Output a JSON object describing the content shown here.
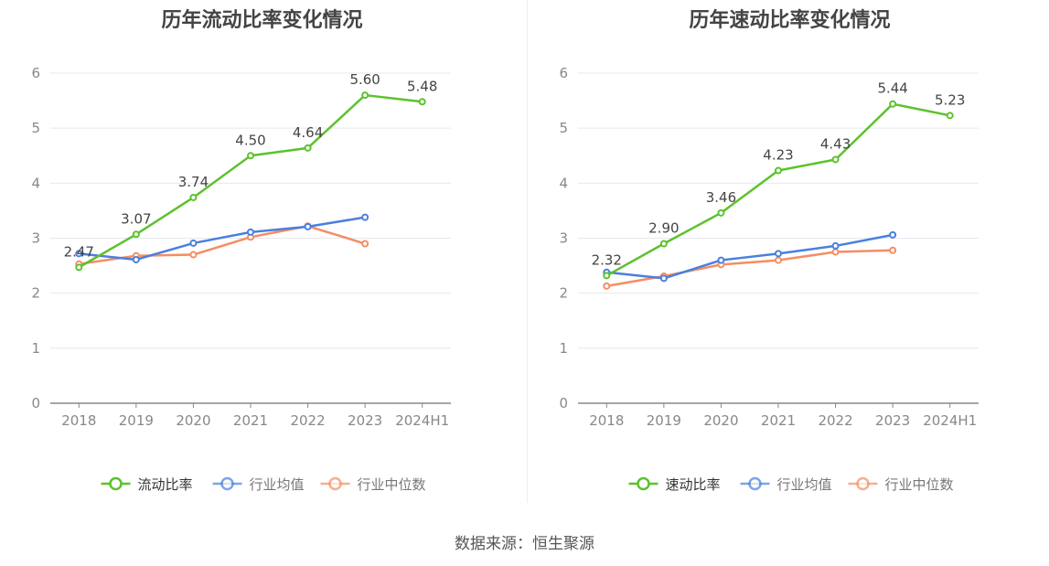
{
  "source_label": "数据来源：恒生聚源",
  "colors": {
    "primary": "#5cc22c",
    "mean": "#4a7fde",
    "median": "#f58d62",
    "grid": "#e6e8f0",
    "axis": "#888888",
    "tick": "#888888"
  },
  "chart_data": [
    {
      "type": "line",
      "title": "历年流动比率变化情况",
      "categories": [
        "2018",
        "2019",
        "2020",
        "2021",
        "2022",
        "2023",
        "2024H1"
      ],
      "ylim": [
        0,
        6
      ],
      "yticks": [
        "0",
        "1",
        "2",
        "3",
        "4",
        "5",
        "6"
      ],
      "grid": true,
      "legend": "bottom",
      "series": [
        {
          "name": "流动比率",
          "values": [
            2.47,
            3.07,
            3.74,
            4.5,
            4.64,
            5.6,
            5.48
          ],
          "labels": [
            "2.47",
            "3.07",
            "3.74",
            "4.50",
            "4.64",
            "5.60",
            "5.48"
          ]
        },
        {
          "name": "行业均值",
          "values": [
            2.72,
            2.61,
            2.91,
            3.11,
            3.21,
            3.38,
            null
          ]
        },
        {
          "name": "行业中位数",
          "values": [
            2.53,
            2.68,
            2.7,
            3.02,
            3.22,
            2.9,
            null
          ]
        }
      ]
    },
    {
      "type": "line",
      "title": "历年速动比率变化情况",
      "categories": [
        "2018",
        "2019",
        "2020",
        "2021",
        "2022",
        "2023",
        "2024H1"
      ],
      "ylim": [
        0,
        6
      ],
      "yticks": [
        "0",
        "1",
        "2",
        "3",
        "4",
        "5",
        "6"
      ],
      "grid": true,
      "legend": "bottom",
      "series": [
        {
          "name": "速动比率",
          "values": [
            2.32,
            2.9,
            3.46,
            4.23,
            4.43,
            5.44,
            5.23
          ],
          "labels": [
            "2.32",
            "2.90",
            "3.46",
            "4.23",
            "4.43",
            "5.44",
            "5.23"
          ]
        },
        {
          "name": "行业均值",
          "values": [
            2.38,
            2.27,
            2.6,
            2.72,
            2.86,
            3.06,
            null
          ]
        },
        {
          "name": "行业中位数",
          "values": [
            2.13,
            2.31,
            2.52,
            2.6,
            2.75,
            2.78,
            null
          ]
        }
      ]
    }
  ]
}
